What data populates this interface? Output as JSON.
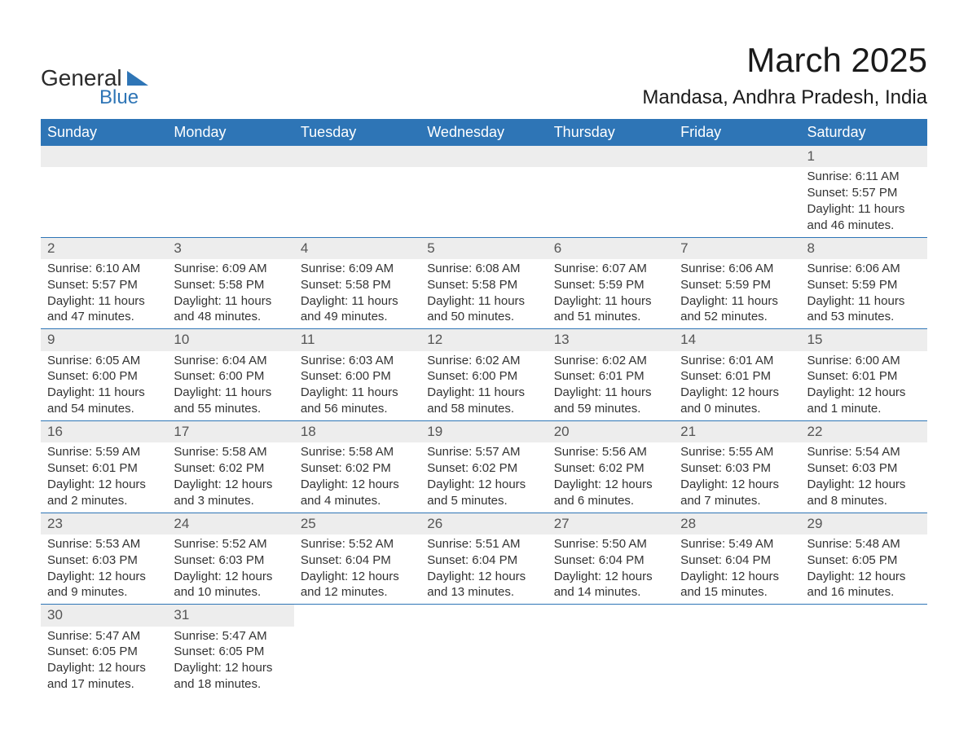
{
  "logo": {
    "text_general": "General",
    "text_blue": "Blue"
  },
  "title": "March 2025",
  "location": "Mandasa, Andhra Pradesh, India",
  "styling": {
    "header_bg": "#2e75b6",
    "header_text": "#ffffff",
    "daynum_bg": "#ededed",
    "daynum_text": "#555555",
    "body_text": "#333333",
    "row_divider": "#2e75b6",
    "page_bg": "#ffffff",
    "title_fontsize": 42,
    "location_fontsize": 24,
    "dayheader_fontsize": 18,
    "cell_fontsize": 15
  },
  "day_headers": [
    "Sunday",
    "Monday",
    "Tuesday",
    "Wednesday",
    "Thursday",
    "Friday",
    "Saturday"
  ],
  "weeks": [
    [
      null,
      null,
      null,
      null,
      null,
      null,
      {
        "n": "1",
        "sunrise": "Sunrise: 6:11 AM",
        "sunset": "Sunset: 5:57 PM",
        "daylight": "Daylight: 11 hours and 46 minutes."
      }
    ],
    [
      {
        "n": "2",
        "sunrise": "Sunrise: 6:10 AM",
        "sunset": "Sunset: 5:57 PM",
        "daylight": "Daylight: 11 hours and 47 minutes."
      },
      {
        "n": "3",
        "sunrise": "Sunrise: 6:09 AM",
        "sunset": "Sunset: 5:58 PM",
        "daylight": "Daylight: 11 hours and 48 minutes."
      },
      {
        "n": "4",
        "sunrise": "Sunrise: 6:09 AM",
        "sunset": "Sunset: 5:58 PM",
        "daylight": "Daylight: 11 hours and 49 minutes."
      },
      {
        "n": "5",
        "sunrise": "Sunrise: 6:08 AM",
        "sunset": "Sunset: 5:58 PM",
        "daylight": "Daylight: 11 hours and 50 minutes."
      },
      {
        "n": "6",
        "sunrise": "Sunrise: 6:07 AM",
        "sunset": "Sunset: 5:59 PM",
        "daylight": "Daylight: 11 hours and 51 minutes."
      },
      {
        "n": "7",
        "sunrise": "Sunrise: 6:06 AM",
        "sunset": "Sunset: 5:59 PM",
        "daylight": "Daylight: 11 hours and 52 minutes."
      },
      {
        "n": "8",
        "sunrise": "Sunrise: 6:06 AM",
        "sunset": "Sunset: 5:59 PM",
        "daylight": "Daylight: 11 hours and 53 minutes."
      }
    ],
    [
      {
        "n": "9",
        "sunrise": "Sunrise: 6:05 AM",
        "sunset": "Sunset: 6:00 PM",
        "daylight": "Daylight: 11 hours and 54 minutes."
      },
      {
        "n": "10",
        "sunrise": "Sunrise: 6:04 AM",
        "sunset": "Sunset: 6:00 PM",
        "daylight": "Daylight: 11 hours and 55 minutes."
      },
      {
        "n": "11",
        "sunrise": "Sunrise: 6:03 AM",
        "sunset": "Sunset: 6:00 PM",
        "daylight": "Daylight: 11 hours and 56 minutes."
      },
      {
        "n": "12",
        "sunrise": "Sunrise: 6:02 AM",
        "sunset": "Sunset: 6:00 PM",
        "daylight": "Daylight: 11 hours and 58 minutes."
      },
      {
        "n": "13",
        "sunrise": "Sunrise: 6:02 AM",
        "sunset": "Sunset: 6:01 PM",
        "daylight": "Daylight: 11 hours and 59 minutes."
      },
      {
        "n": "14",
        "sunrise": "Sunrise: 6:01 AM",
        "sunset": "Sunset: 6:01 PM",
        "daylight": "Daylight: 12 hours and 0 minutes."
      },
      {
        "n": "15",
        "sunrise": "Sunrise: 6:00 AM",
        "sunset": "Sunset: 6:01 PM",
        "daylight": "Daylight: 12 hours and 1 minute."
      }
    ],
    [
      {
        "n": "16",
        "sunrise": "Sunrise: 5:59 AM",
        "sunset": "Sunset: 6:01 PM",
        "daylight": "Daylight: 12 hours and 2 minutes."
      },
      {
        "n": "17",
        "sunrise": "Sunrise: 5:58 AM",
        "sunset": "Sunset: 6:02 PM",
        "daylight": "Daylight: 12 hours and 3 minutes."
      },
      {
        "n": "18",
        "sunrise": "Sunrise: 5:58 AM",
        "sunset": "Sunset: 6:02 PM",
        "daylight": "Daylight: 12 hours and 4 minutes."
      },
      {
        "n": "19",
        "sunrise": "Sunrise: 5:57 AM",
        "sunset": "Sunset: 6:02 PM",
        "daylight": "Daylight: 12 hours and 5 minutes."
      },
      {
        "n": "20",
        "sunrise": "Sunrise: 5:56 AM",
        "sunset": "Sunset: 6:02 PM",
        "daylight": "Daylight: 12 hours and 6 minutes."
      },
      {
        "n": "21",
        "sunrise": "Sunrise: 5:55 AM",
        "sunset": "Sunset: 6:03 PM",
        "daylight": "Daylight: 12 hours and 7 minutes."
      },
      {
        "n": "22",
        "sunrise": "Sunrise: 5:54 AM",
        "sunset": "Sunset: 6:03 PM",
        "daylight": "Daylight: 12 hours and 8 minutes."
      }
    ],
    [
      {
        "n": "23",
        "sunrise": "Sunrise: 5:53 AM",
        "sunset": "Sunset: 6:03 PM",
        "daylight": "Daylight: 12 hours and 9 minutes."
      },
      {
        "n": "24",
        "sunrise": "Sunrise: 5:52 AM",
        "sunset": "Sunset: 6:03 PM",
        "daylight": "Daylight: 12 hours and 10 minutes."
      },
      {
        "n": "25",
        "sunrise": "Sunrise: 5:52 AM",
        "sunset": "Sunset: 6:04 PM",
        "daylight": "Daylight: 12 hours and 12 minutes."
      },
      {
        "n": "26",
        "sunrise": "Sunrise: 5:51 AM",
        "sunset": "Sunset: 6:04 PM",
        "daylight": "Daylight: 12 hours and 13 minutes."
      },
      {
        "n": "27",
        "sunrise": "Sunrise: 5:50 AM",
        "sunset": "Sunset: 6:04 PM",
        "daylight": "Daylight: 12 hours and 14 minutes."
      },
      {
        "n": "28",
        "sunrise": "Sunrise: 5:49 AM",
        "sunset": "Sunset: 6:04 PM",
        "daylight": "Daylight: 12 hours and 15 minutes."
      },
      {
        "n": "29",
        "sunrise": "Sunrise: 5:48 AM",
        "sunset": "Sunset: 6:05 PM",
        "daylight": "Daylight: 12 hours and 16 minutes."
      }
    ],
    [
      {
        "n": "30",
        "sunrise": "Sunrise: 5:47 AM",
        "sunset": "Sunset: 6:05 PM",
        "daylight": "Daylight: 12 hours and 17 minutes."
      },
      {
        "n": "31",
        "sunrise": "Sunrise: 5:47 AM",
        "sunset": "Sunset: 6:05 PM",
        "daylight": "Daylight: 12 hours and 18 minutes."
      },
      null,
      null,
      null,
      null,
      null
    ]
  ]
}
